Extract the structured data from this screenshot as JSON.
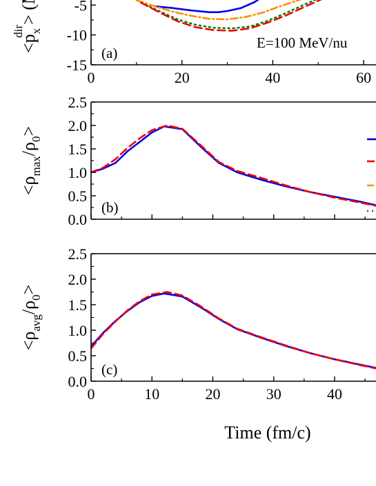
{
  "chart_data": [
    {
      "type": "line",
      "panel_label": "(a)",
      "annotation": "E=100 MeV/nu",
      "ylabel": {
        "main": "<p",
        "sub": "x",
        "sup": "dir",
        "rest": "> (M"
      },
      "xlim": [
        0,
        65
      ],
      "ylim": [
        -15,
        -3
      ],
      "x_ticks": [
        0,
        20,
        40,
        60
      ],
      "y_ticks": [
        -15,
        -10,
        -5
      ],
      "series": [
        {
          "color": "#0000ee",
          "dash": "solid",
          "x": [
            14,
            18,
            22,
            26,
            28,
            30,
            33,
            36,
            38
          ],
          "y": [
            -5.2,
            -5.5,
            -5.9,
            -6.2,
            -6.2,
            -6.0,
            -5.5,
            -4.5,
            -3.5
          ]
        },
        {
          "color": "#ff8c00",
          "dash": "dashdot",
          "x": [
            10,
            14,
            18,
            22,
            26,
            30,
            34,
            38,
            42,
            46,
            49
          ],
          "y": [
            -4.2,
            -5.2,
            -6.1,
            -6.8,
            -7.3,
            -7.4,
            -7.0,
            -6.2,
            -5.1,
            -4.1,
            -3.3
          ]
        },
        {
          "color": "#008000",
          "dash": "dotted",
          "x": [
            11,
            15,
            19,
            23,
            27,
            31,
            35,
            39,
            43,
            47,
            51
          ],
          "y": [
            -4.6,
            -6.0,
            -7.4,
            -8.3,
            -8.8,
            -8.9,
            -8.6,
            -7.6,
            -6.3,
            -4.9,
            -3.6
          ]
        },
        {
          "color": "#ee0000",
          "dash": "dashed",
          "x": [
            11,
            15,
            19,
            23,
            27,
            31,
            35,
            39,
            43,
            47,
            52
          ],
          "y": [
            -4.6,
            -6.2,
            -7.7,
            -8.7,
            -9.2,
            -9.3,
            -8.9,
            -7.9,
            -6.7,
            -5.3,
            -3.6
          ]
        }
      ]
    },
    {
      "type": "line",
      "panel_label": "(b)",
      "ylabel": {
        "main": "<ρ",
        "sub": "max",
        "slash": "/ρ",
        "sub2": "0",
        "rest": ">"
      },
      "xlim": [
        0,
        48.5
      ],
      "ylim": [
        0,
        2.5
      ],
      "x_ticks": [],
      "y_ticks": [
        0.0,
        0.5,
        1.0,
        1.5,
        2.0,
        2.5
      ],
      "y_tick_labels": [
        "0.0",
        "0.5",
        "1.0",
        "1.5",
        "2.0",
        "2.5"
      ],
      "series": [
        {
          "color": "#0000ee",
          "dash": "solid",
          "x": [
            0,
            2,
            4,
            6,
            8,
            10,
            12,
            15,
            18,
            21,
            24,
            28,
            32,
            36,
            40,
            44,
            48.5
          ],
          "y": [
            1.0,
            1.08,
            1.2,
            1.45,
            1.65,
            1.85,
            1.98,
            1.92,
            1.55,
            1.2,
            1.0,
            0.84,
            0.7,
            0.58,
            0.48,
            0.38,
            0.25
          ]
        },
        {
          "color": "#ee0000",
          "dash": "dashed",
          "x": [
            0,
            2,
            4,
            6,
            8,
            10,
            12.5,
            15,
            18,
            21,
            24,
            28,
            32,
            36,
            40,
            44,
            48.5
          ],
          "y": [
            1.0,
            1.1,
            1.28,
            1.52,
            1.73,
            1.9,
            2.0,
            1.93,
            1.58,
            1.22,
            1.03,
            0.88,
            0.72,
            0.58,
            0.46,
            0.36,
            0.24
          ]
        }
      ],
      "legend_colors": [
        "#0000ee",
        "#ee0000",
        "#ff8c00",
        "#008000"
      ]
    },
    {
      "type": "line",
      "panel_label": "(c)",
      "ylabel": {
        "main": "<ρ",
        "sub": "avg",
        "slash": "/ρ",
        "sub2": "0",
        "rest": ">"
      },
      "xlabel": "Time (fm/c)",
      "xlim": [
        0,
        48.5
      ],
      "ylim": [
        0,
        2.5
      ],
      "x_ticks": [
        0,
        10,
        20,
        30,
        40
      ],
      "y_ticks": [
        0.0,
        0.5,
        1.0,
        1.5,
        2.0,
        2.5
      ],
      "y_tick_labels": [
        "0.0",
        "0.5",
        "1.0",
        "1.5",
        "2.0",
        "2.5"
      ],
      "series": [
        {
          "color": "#0000ee",
          "dash": "solid",
          "x": [
            0,
            2,
            4,
            6,
            8,
            10,
            12,
            15,
            18,
            21,
            24,
            28,
            32,
            36,
            40,
            44,
            48.5
          ],
          "y": [
            0.68,
            0.95,
            1.18,
            1.38,
            1.55,
            1.67,
            1.72,
            1.66,
            1.45,
            1.22,
            1.02,
            0.85,
            0.69,
            0.55,
            0.43,
            0.33,
            0.22
          ]
        },
        {
          "color": "#ee0000",
          "dash": "dashed",
          "x": [
            0,
            2,
            4,
            6,
            8,
            10,
            12.5,
            15,
            18,
            21,
            24,
            28,
            32,
            36,
            40,
            44,
            48.5
          ],
          "y": [
            0.64,
            0.93,
            1.17,
            1.39,
            1.57,
            1.7,
            1.75,
            1.68,
            1.47,
            1.23,
            1.03,
            0.86,
            0.7,
            0.55,
            0.43,
            0.32,
            0.21
          ]
        }
      ]
    }
  ]
}
